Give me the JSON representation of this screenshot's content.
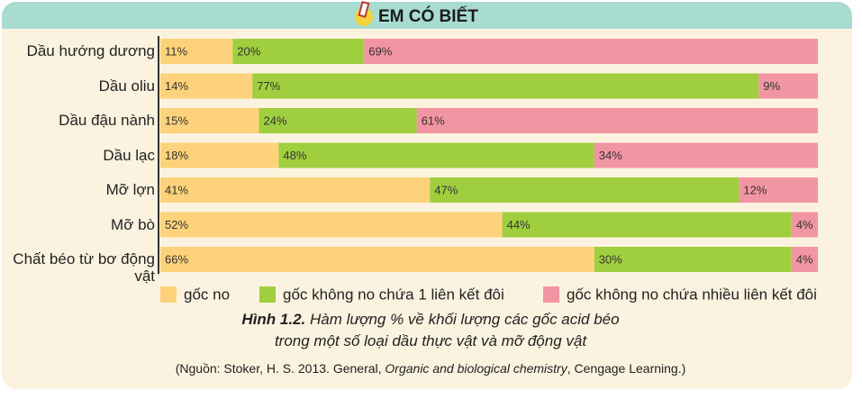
{
  "header": {
    "title": "EM CÓ BIẾT"
  },
  "chart_data": {
    "type": "bar",
    "orientation": "horizontal",
    "stacked": true,
    "categories": [
      "Dầu hướng dương",
      "Dầu oliu",
      "Dầu đậu nành",
      "Dầu lạc",
      "Mỡ lợn",
      "Mỡ bò",
      "Chất béo từ bơ động vật"
    ],
    "series": [
      {
        "name": "gốc no",
        "color": "#fdd27a",
        "values": [
          11,
          14,
          15,
          18,
          41,
          52,
          66
        ],
        "value_labels": [
          "11%",
          "14%",
          "15%",
          "18%",
          "41%",
          "52%",
          "66%"
        ]
      },
      {
        "name": "gốc không no chứa 1 liên kết đôi",
        "color": "#9fcf3e",
        "values": [
          20,
          77,
          24,
          48,
          47,
          44,
          30
        ],
        "value_labels": [
          "20%",
          "77%",
          "24%",
          "48%",
          "47%",
          "44%",
          "30%"
        ]
      },
      {
        "name": "gốc không no chứa nhiều liên kết đôi",
        "color": "#f295a3",
        "values": [
          69,
          9,
          61,
          34,
          12,
          4,
          4
        ],
        "value_labels": [
          "69%",
          "9%",
          "61%",
          "34%",
          "12%",
          "4%",
          "4%"
        ]
      }
    ],
    "caption_label": "Hình 1.2.",
    "caption": "Hàm lượng % về khối lượng các gốc acid béo trong một số loại dầu thực vật và mỡ động vật",
    "source": [
      "(Nguồn: Stoker, H. S. 2013. General, ",
      "Organic and biological chemistry",
      ", Cengage Learning.)"
    ],
    "legend": "bottom"
  }
}
